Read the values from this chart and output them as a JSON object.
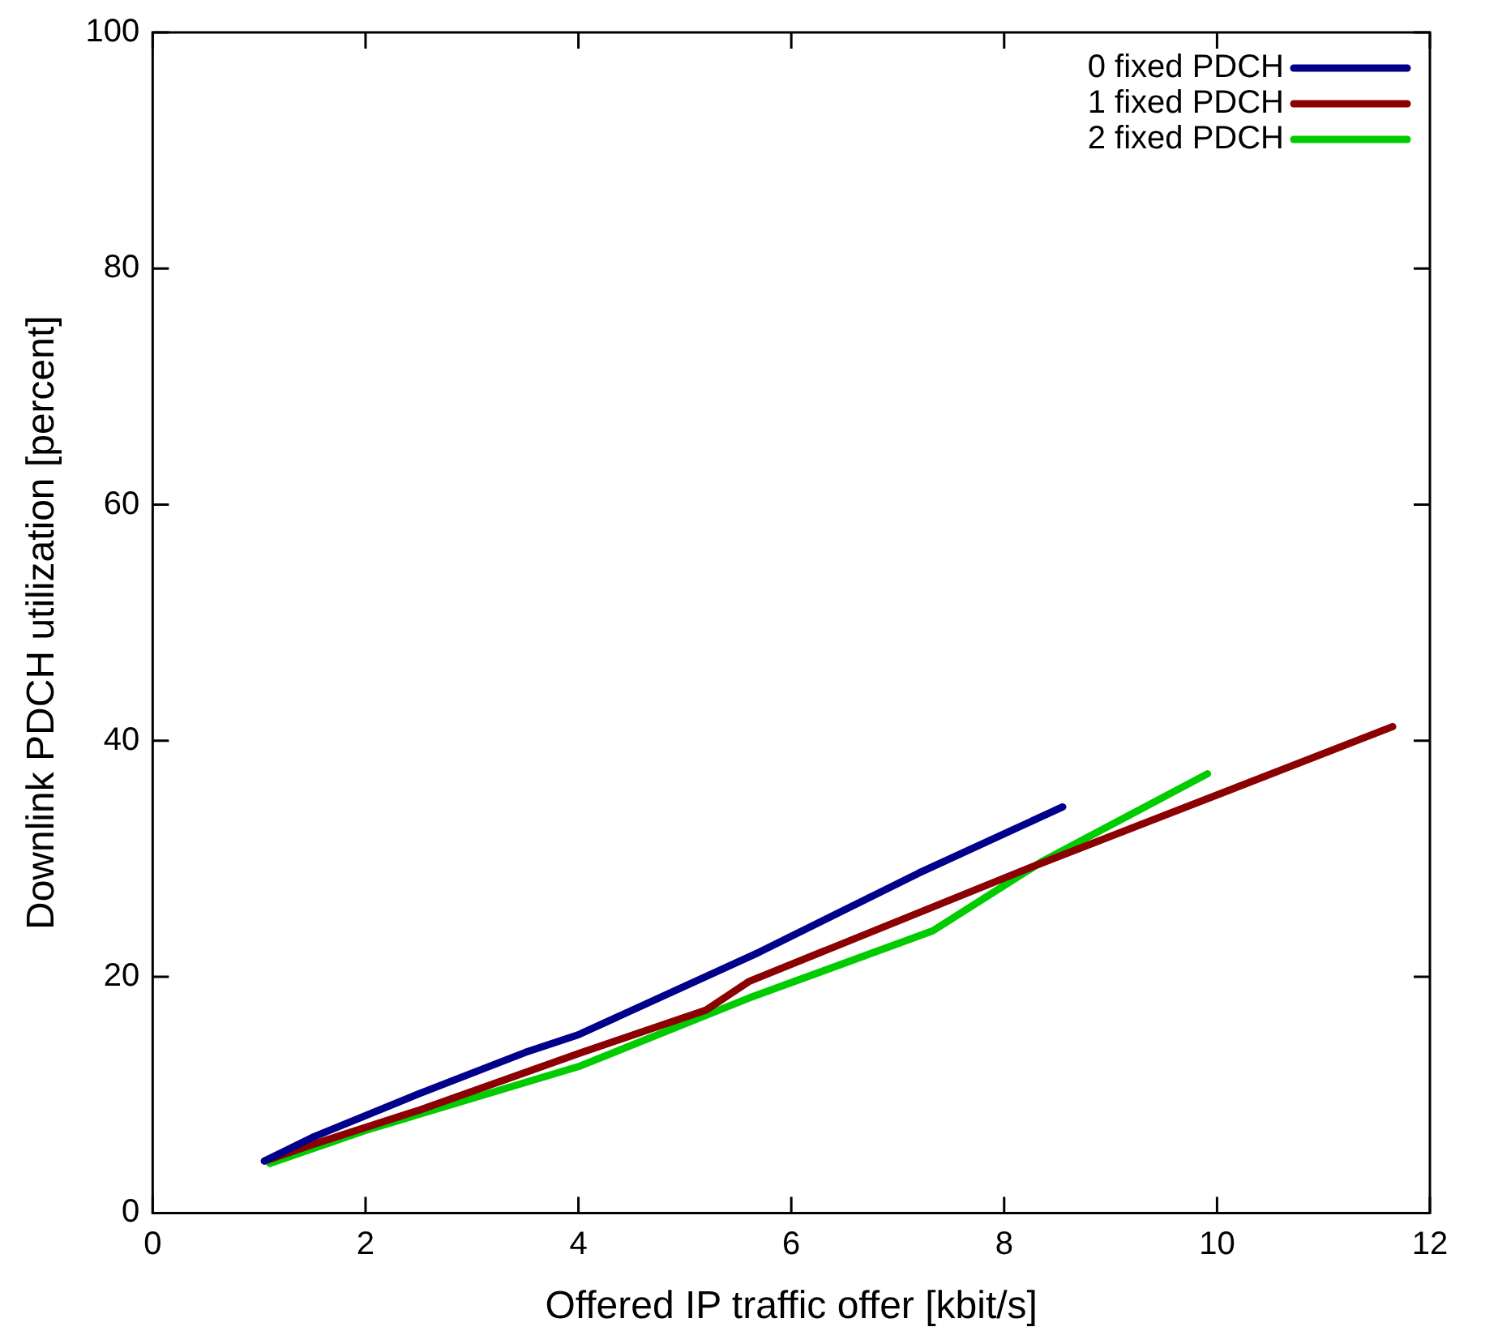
{
  "chart_data": {
    "type": "line",
    "xlabel": "Offered IP traffic offer [kbit/s]",
    "ylabel": "Downlink PDCH utilization [percent]",
    "xlim": [
      0,
      12
    ],
    "xticks": [
      0,
      2,
      4,
      6,
      8,
      10,
      12
    ],
    "ylim": [
      0,
      100
    ],
    "yticks": [
      0,
      20,
      40,
      60,
      80,
      100
    ],
    "grid": false,
    "legend": "top right",
    "marker": "none",
    "line_style": "solid",
    "series": [
      {
        "name": "0 fixed PDCH",
        "color": "#00008b",
        "x": [
          1.05,
          1.5,
          2.5,
          3.5,
          4.0,
          5.7,
          7.2,
          8.55
        ],
        "values": [
          4.4,
          6.4,
          10.1,
          13.6,
          15.1,
          22.1,
          28.8,
          34.4
        ]
      },
      {
        "name": "1 fixed PDCH",
        "color": "#8b0000",
        "x": [
          1.05,
          1.5,
          2.5,
          4.0,
          5.2,
          5.6,
          8.2,
          11.65
        ],
        "values": [
          4.4,
          5.8,
          8.7,
          13.5,
          17.2,
          19.6,
          29.1,
          41.2
        ]
      },
      {
        "name": "2 fixed PDCH",
        "color": "#00cc00",
        "x": [
          1.1,
          2.0,
          4.0,
          5.6,
          7.33,
          8.36,
          9.91
        ],
        "values": [
          4.2,
          7.0,
          12.4,
          18.2,
          23.9,
          29.8,
          37.2
        ]
      }
    ]
  }
}
